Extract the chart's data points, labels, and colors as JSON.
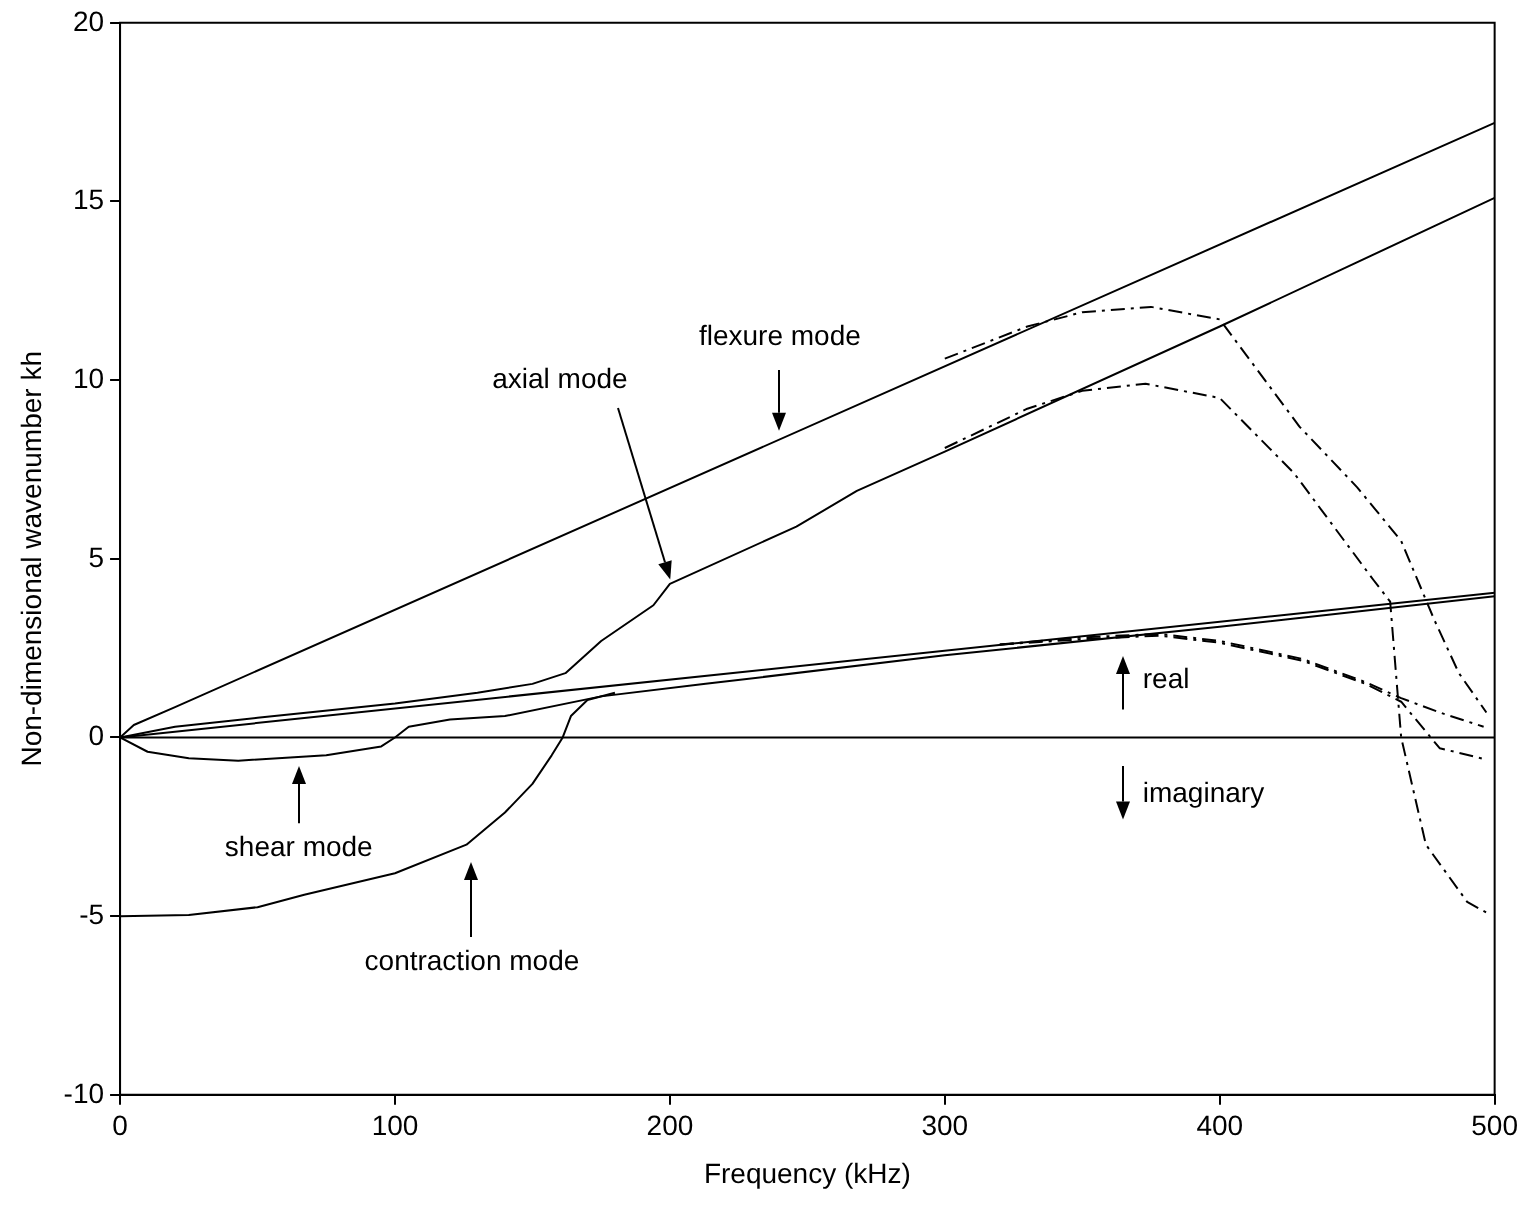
{
  "chart_data": {
    "type": "line",
    "xlabel": "Frequency (kHz)",
    "ylabel": "Non-dimensional wavenumber kh",
    "xlim": [
      0,
      500
    ],
    "xticks": [
      0,
      100,
      200,
      300,
      400,
      500
    ],
    "ylim": [
      -10,
      20
    ],
    "yticks": [
      -10,
      -5,
      0,
      5,
      10,
      15,
      20
    ],
    "grid": false,
    "legend": false,
    "marker": "none",
    "ref_lines": [
      {
        "axis": "y",
        "value": 0,
        "color": "#000000"
      }
    ],
    "series": [
      {
        "color": "#000000",
        "line_style": "solid",
        "x": [
          0,
          5,
          20,
          500
        ],
        "values": [
          0,
          0.35,
          0.85,
          17.2
        ]
      },
      {
        "color": "#000000",
        "line_style": "solid",
        "x": [
          0,
          20,
          50,
          100,
          130,
          150,
          162,
          175,
          194,
          200,
          246,
          268,
          300,
          400,
          500
        ],
        "values": [
          0,
          0.3,
          0.55,
          0.95,
          1.25,
          1.5,
          1.8,
          2.7,
          3.7,
          4.3,
          5.9,
          6.9,
          8.0,
          11.5,
          15.1
        ]
      },
      {
        "color": "#000000",
        "line_style": "solid",
        "x": [
          0,
          500
        ],
        "values": [
          0,
          4.05
        ]
      },
      {
        "color": "#000000",
        "line_style": "solid",
        "x": [
          0,
          10,
          25,
          43,
          75,
          95,
          100,
          105,
          120,
          140,
          175,
          213,
          300,
          400,
          500
        ],
        "values": [
          0,
          -0.4,
          -0.58,
          -0.65,
          -0.5,
          -0.25,
          0,
          0.3,
          0.5,
          0.6,
          1.15,
          1.5,
          2.3,
          3.1,
          3.95
        ]
      },
      {
        "color": "#000000",
        "line_style": "solid",
        "x": [
          0,
          25,
          50,
          67,
          100,
          126,
          140,
          150,
          157,
          161,
          164,
          170,
          180
        ],
        "values": [
          -5,
          -4.97,
          -4.75,
          -4.4,
          -3.8,
          -3.0,
          -2.1,
          -1.3,
          -0.5,
          0,
          0.6,
          1.05,
          1.25
        ]
      },
      {
        "color": "#000000",
        "line_style": "dashed",
        "x": [
          300,
          330,
          350,
          375,
          400,
          429,
          450,
          466,
          478,
          487,
          497
        ],
        "values": [
          10.6,
          11.5,
          11.9,
          12.05,
          11.7,
          8.7,
          7.0,
          5.5,
          3.3,
          1.8,
          0.7
        ]
      },
      {
        "color": "#000000",
        "line_style": "dashed",
        "x": [
          300,
          330,
          350,
          373,
          400,
          427,
          456,
          462,
          466,
          475,
          490,
          497
        ],
        "values": [
          8.1,
          9.2,
          9.7,
          9.9,
          9.5,
          7.4,
          4.4,
          3.8,
          0,
          -3.0,
          -4.6,
          -4.9
        ]
      },
      {
        "color": "#000000",
        "line_style": "dashed",
        "x": [
          320,
          350,
          378,
          400,
          430,
          453,
          466,
          480,
          496
        ],
        "values": [
          2.6,
          2.8,
          2.9,
          2.7,
          2.2,
          1.55,
          1.1,
          0.7,
          0.3
        ]
      },
      {
        "color": "#000000",
        "line_style": "dashed",
        "x": [
          320,
          350,
          378,
          400,
          430,
          453,
          466,
          480,
          496
        ],
        "values": [
          2.6,
          2.75,
          2.85,
          2.65,
          2.15,
          1.5,
          1.0,
          -0.3,
          -0.6
        ]
      }
    ],
    "annotations": [
      {
        "text": "flexure mode",
        "x": 240,
        "y": 8.6
      },
      {
        "text": "axial mode",
        "x": 200,
        "y": 4.4
      },
      {
        "text": "shear mode",
        "x": 65,
        "y": -0.8
      },
      "contraction mode",
      "real",
      "imaginary"
    ]
  }
}
